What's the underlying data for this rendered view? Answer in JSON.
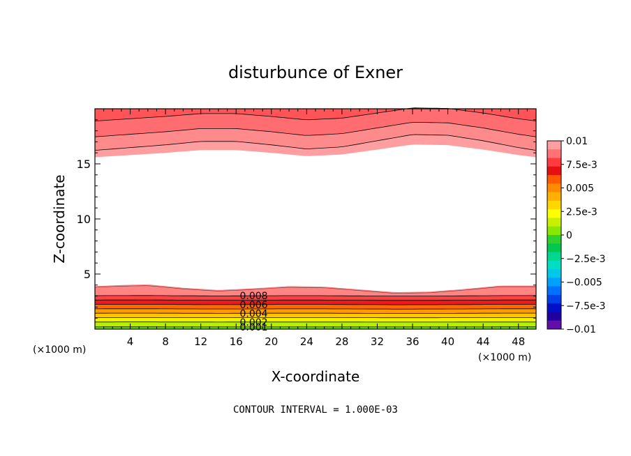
{
  "chart_data": {
    "type": "contour",
    "title": "disturbunce of Exner",
    "xlabel": "X-coordinate",
    "ylabel": "Z-coordinate",
    "x_unit": "(×1000 m)",
    "x_unit_right": "(×1000 m)",
    "footer": "CONTOUR INTERVAL = 1.000E-03",
    "xlim": [
      0,
      50
    ],
    "ylim": [
      0,
      20
    ],
    "x_ticks": [
      4,
      8,
      12,
      16,
      20,
      24,
      28,
      32,
      36,
      40,
      44,
      48
    ],
    "x_tick_labels": [
      "4",
      "8",
      "12",
      "16",
      "20",
      "24",
      "28",
      "32",
      "36",
      "40",
      "44",
      "48"
    ],
    "y_ticks": [
      5,
      10,
      15
    ],
    "y_tick_labels": [
      "5",
      "10",
      "15"
    ],
    "contour_interval": 0.001,
    "bottom_band": {
      "top_boundary": [
        [
          0,
          3.9
        ],
        [
          3,
          4.0
        ],
        [
          6,
          4.05
        ],
        [
          10,
          3.75
        ],
        [
          14,
          3.55
        ],
        [
          18,
          3.7
        ],
        [
          22,
          3.9
        ],
        [
          26,
          3.85
        ],
        [
          30,
          3.6
        ],
        [
          34,
          3.35
        ],
        [
          38,
          3.4
        ],
        [
          42,
          3.65
        ],
        [
          46,
          3.95
        ],
        [
          50,
          3.95
        ]
      ],
      "contours": [
        {
          "value": 0.001,
          "label": "0.001",
          "z": 0.2
        },
        {
          "value": 0.002,
          "label": "0.002",
          "z": 0.65
        },
        {
          "value": 0.003,
          "z": 1.05
        },
        {
          "value": 0.004,
          "label": "0.004",
          "z": 1.45
        },
        {
          "value": 0.005,
          "z": 1.85
        },
        {
          "value": 0.006,
          "label": "0.006",
          "z": 2.25
        },
        {
          "value": 0.007,
          "z": 2.65
        },
        {
          "value": 0.008,
          "label": "0.008",
          "z": 3.05
        }
      ]
    },
    "top_band": {
      "bottom_boundary": [
        [
          0,
          15.6
        ],
        [
          4,
          15.8
        ],
        [
          8,
          16.0
        ],
        [
          12,
          16.25
        ],
        [
          16,
          16.25
        ],
        [
          20,
          16.0
        ],
        [
          24,
          15.7
        ],
        [
          28,
          15.85
        ],
        [
          32,
          16.3
        ],
        [
          36,
          16.75
        ],
        [
          40,
          16.7
        ],
        [
          44,
          16.3
        ],
        [
          48,
          15.8
        ],
        [
          50,
          15.6
        ]
      ],
      "contours": [
        {
          "value": 0.009,
          "z": 16.9
        },
        {
          "value": 0.01,
          "z": 18.1
        },
        {
          "value": 0.011,
          "z": 19.5
        }
      ]
    },
    "colorbar": {
      "range": [
        -0.01,
        0.01
      ],
      "tick_labels": [
        "0.01",
        "7.5e-3",
        "0.005",
        "2.5e-3",
        "0",
        "−2.5e-3",
        "−0.005",
        "−7.5e-3",
        "−0.01"
      ],
      "colors": [
        "#ff9ea0",
        "#ff7376",
        "#ff3b3e",
        "#e61010",
        "#ff5a00",
        "#ff8c00",
        "#ffb000",
        "#ffd700",
        "#ffff00",
        "#c8f000",
        "#88e800",
        "#30d030",
        "#00c850",
        "#00d890",
        "#00e0c0",
        "#00c8e8",
        "#00a0ff",
        "#0070ff",
        "#0040e8",
        "#0010c8",
        "#2000a0",
        "#6010a8"
      ]
    }
  }
}
